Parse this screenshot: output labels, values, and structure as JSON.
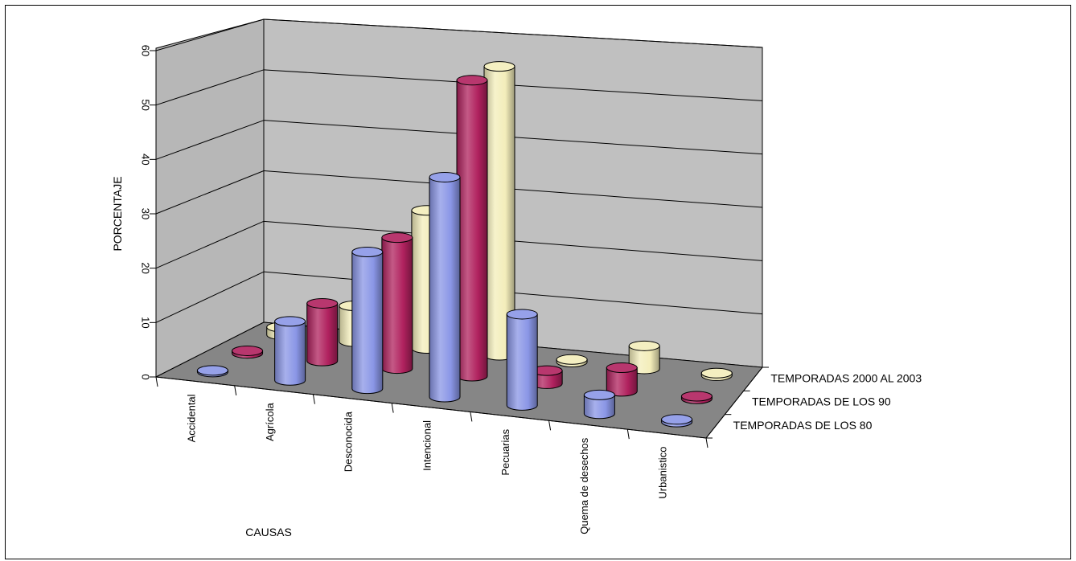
{
  "chart_data": {
    "type": "bar",
    "subtype": "3d-cylinder",
    "title": "",
    "ylabel": "PORCENTAJE",
    "xlabel": "CAUSAS",
    "ylim": [
      0,
      60
    ],
    "yticks": [
      0,
      10,
      20,
      30,
      40,
      50,
      60
    ],
    "grid": true,
    "categories": [
      "Accidental",
      "Agrícola",
      "Desconocida",
      "Intencional",
      "Pecuarias",
      "Quema de desechos",
      "Urbanistico"
    ],
    "series": [
      {
        "name": "TEMPORADAS DE LOS 80",
        "color": "#8A96E6",
        "values": [
          0.3,
          11,
          25.5,
          41,
          17,
          3.5,
          0.5
        ]
      },
      {
        "name": "TEMPORADAS DE LOS 90",
        "color": "#B0215E",
        "values": [
          0.5,
          11,
          25,
          56.5,
          2.5,
          4.5,
          0.5
        ]
      },
      {
        "name": "TEMPORADAS 2000 AL 2003",
        "color": "#F3EDBA",
        "values": [
          1.5,
          7,
          27,
          56.5,
          0.5,
          4.5,
          0.5
        ]
      }
    ]
  }
}
